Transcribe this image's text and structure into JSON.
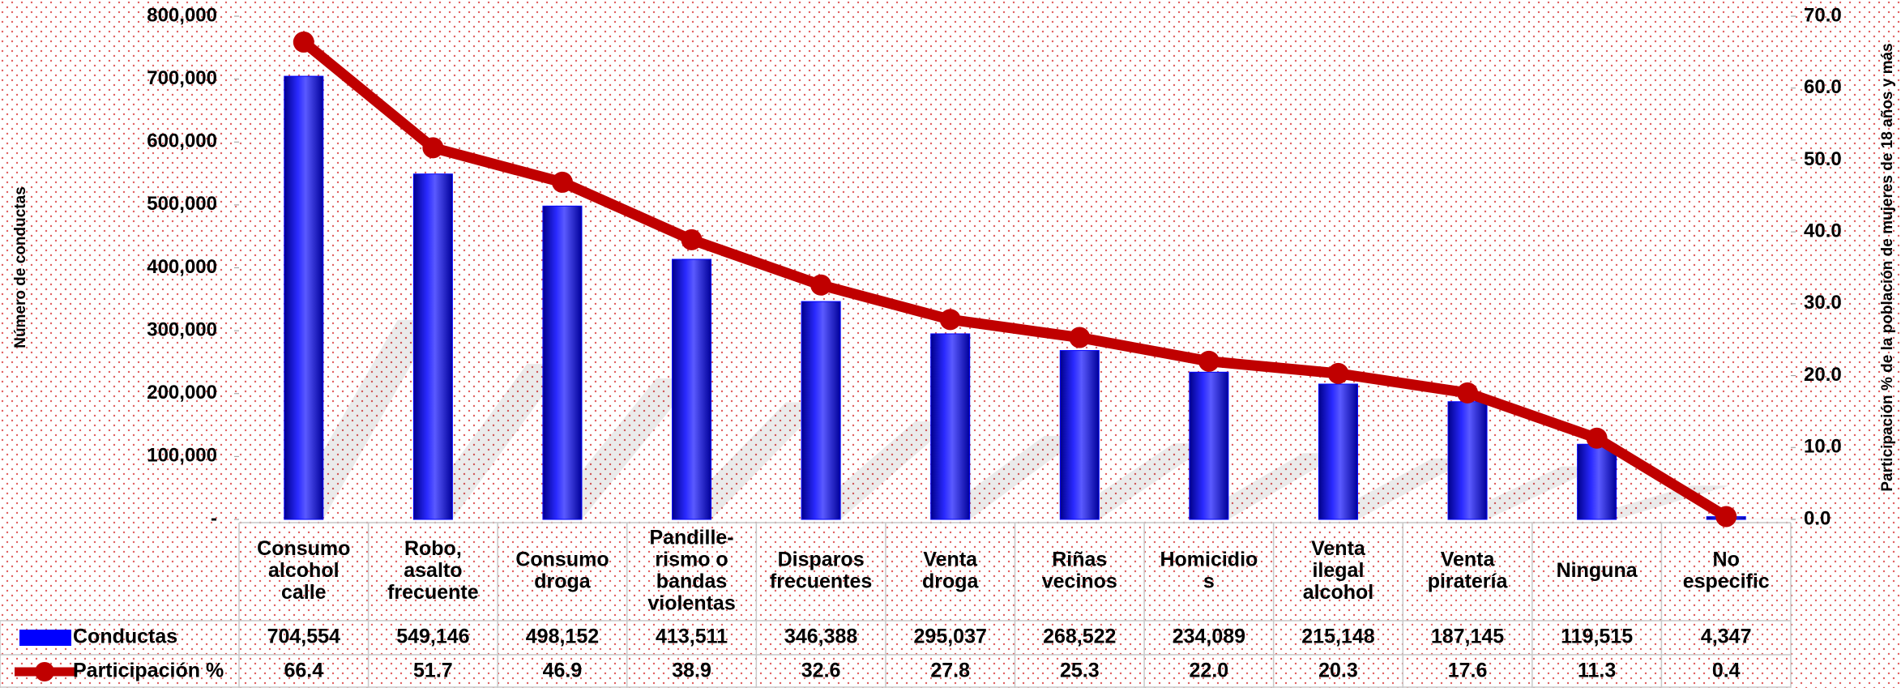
{
  "chart_data": {
    "type": "bar_line",
    "y_label": "Número de conductas",
    "y2_label": "Participación % de la población de mujeres de 18 años y más",
    "categories": [
      "Consumo\nalcohol\ncalle",
      "Robo,\nasalto\nfrecuente",
      "Consumo\ndroga",
      "Pandille-\nrismo o\nbandas\nviolentas",
      "Disparos\nfrecuentes",
      "Venta\ndroga",
      "Riñas\nvecinos",
      "Homicidio\ns",
      "Venta\nilegal\nalcohol",
      "Venta\npiratería",
      "Ninguna",
      "No\nespecific"
    ],
    "series": [
      {
        "name": "Conductas",
        "color": "#0000ff",
        "type": "bar",
        "values": [
          704554,
          549146,
          498152,
          413511,
          346388,
          295037,
          268522,
          234089,
          215148,
          187145,
          119515,
          4347
        ],
        "value_labels": [
          "704,554",
          "549,146",
          "498,152",
          "413,511",
          "346,388",
          "295,037",
          "268,522",
          "234,089",
          "215,148",
          "187,145",
          "119,515",
          "4,347"
        ]
      },
      {
        "name": "Participación %",
        "color": "#c00000",
        "type": "line",
        "axis": "y2",
        "values": [
          66.4,
          51.7,
          46.9,
          38.9,
          32.6,
          27.8,
          25.3,
          22.0,
          20.3,
          17.6,
          11.3,
          0.4
        ],
        "value_labels": [
          "66.4",
          "51.7",
          "46.9",
          "38.9",
          "32.6",
          "27.8",
          "25.3",
          "22.0",
          "20.3",
          "17.6",
          "11.3",
          "0.4"
        ]
      }
    ],
    "ylim": [
      0,
      800000
    ],
    "yticks": [
      {
        "value": 0,
        "label": "-"
      },
      {
        "value": 100000,
        "label": "100,000"
      },
      {
        "value": 200000,
        "label": "200,000"
      },
      {
        "value": 300000,
        "label": "300,000"
      },
      {
        "value": 400000,
        "label": "400,000"
      },
      {
        "value": 500000,
        "label": "500,000"
      },
      {
        "value": 600000,
        "label": "600,000"
      },
      {
        "value": 700000,
        "label": "700,000"
      },
      {
        "value": 800000,
        "label": "800,000"
      }
    ],
    "y2lim": [
      0,
      70
    ],
    "y2ticks": [
      {
        "value": 0,
        "label": "0.0"
      },
      {
        "value": 10,
        "label": "10.0"
      },
      {
        "value": 20,
        "label": "20.0"
      },
      {
        "value": 30,
        "label": "30.0"
      },
      {
        "value": 40,
        "label": "40.0"
      },
      {
        "value": 50,
        "label": "50.0"
      },
      {
        "value": 60,
        "label": "60.0"
      },
      {
        "value": 70,
        "label": "70.0"
      }
    ]
  }
}
